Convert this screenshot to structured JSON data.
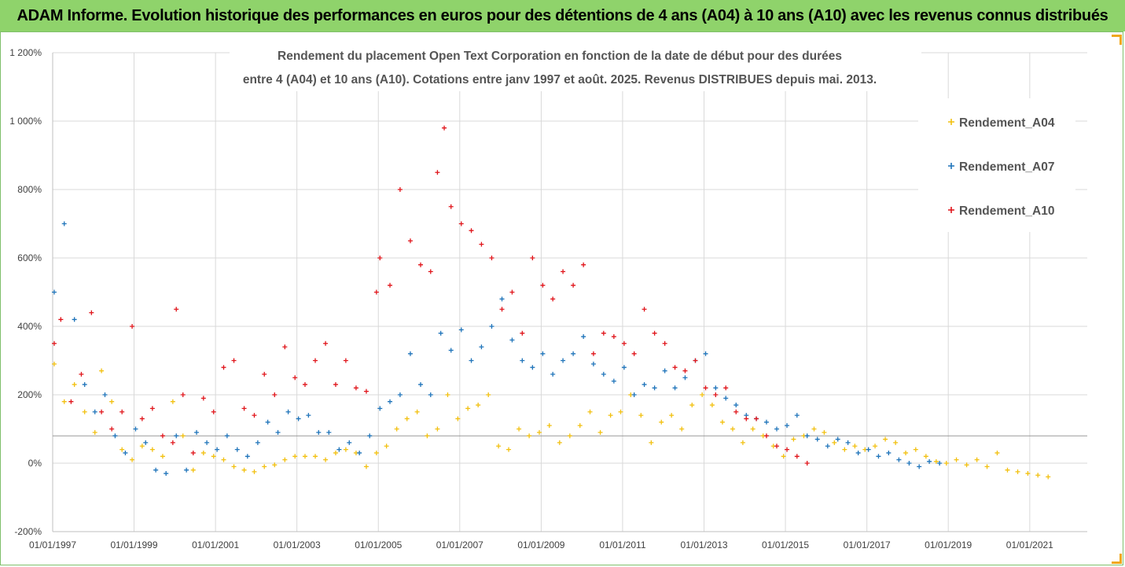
{
  "header": {
    "title": "ADAM Informe. Evolution historique des performances en euros pour des détentions de 4 ans (A04) à 10 ans (A10) avec les revenus connus distribués"
  },
  "chart_data": {
    "type": "scatter",
    "title_lines": [
      "Rendement du placement Open Text Corporation en fonction de la date de début pour des durées",
      "entre 4 (A04) et 10 ans (A10). Cotations entre janv 1997 et août. 2025. Revenus DISTRIBUES depuis mai. 2013."
    ],
    "x_ticks": [
      "01/01/1997",
      "01/01/1999",
      "01/01/2001",
      "01/01/2003",
      "01/01/2005",
      "01/01/2007",
      "01/01/2009",
      "01/01/2011",
      "01/01/2013",
      "01/01/2015",
      "01/01/2017",
      "01/01/2019",
      "01/01/2021"
    ],
    "xlim": [
      "1997-01-01",
      "2022-06-01"
    ],
    "y_ticks": [
      "1 200%",
      "1 000%",
      "800%",
      "600%",
      "400%",
      "200%",
      "0%",
      "-200%"
    ],
    "ylim": [
      -200,
      1200
    ],
    "reference_line": 80,
    "legend_position": "right",
    "series": [
      {
        "name": "Rendement_A04",
        "color": "#f2c00f",
        "points": [
          [
            "1997-01",
            290
          ],
          [
            "1997-04",
            180
          ],
          [
            "1997-07",
            230
          ],
          [
            "1997-10",
            150
          ],
          [
            "1998-01",
            90
          ],
          [
            "1998-03",
            270
          ],
          [
            "1998-06",
            180
          ],
          [
            "1998-09",
            40
          ],
          [
            "1998-12",
            10
          ],
          [
            "1999-03",
            50
          ],
          [
            "1999-06",
            40
          ],
          [
            "1999-09",
            20
          ],
          [
            "1999-12",
            180
          ],
          [
            "2000-03",
            80
          ],
          [
            "2000-06",
            -20
          ],
          [
            "2000-09",
            30
          ],
          [
            "2000-12",
            20
          ],
          [
            "2001-03",
            10
          ],
          [
            "2001-06",
            -10
          ],
          [
            "2001-09",
            -20
          ],
          [
            "2001-12",
            -25
          ],
          [
            "2002-03",
            -10
          ],
          [
            "2002-06",
            -5
          ],
          [
            "2002-09",
            10
          ],
          [
            "2002-12",
            20
          ],
          [
            "2003-03",
            20
          ],
          [
            "2003-06",
            20
          ],
          [
            "2003-09",
            10
          ],
          [
            "2003-12",
            30
          ],
          [
            "2004-03",
            40
          ],
          [
            "2004-06",
            30
          ],
          [
            "2004-09",
            -10
          ],
          [
            "2004-12",
            30
          ],
          [
            "2005-03",
            50
          ],
          [
            "2005-06",
            100
          ],
          [
            "2005-09",
            130
          ],
          [
            "2005-12",
            150
          ],
          [
            "2006-03",
            80
          ],
          [
            "2006-06",
            100
          ],
          [
            "2006-09",
            200
          ],
          [
            "2006-12",
            130
          ],
          [
            "2007-03",
            160
          ],
          [
            "2007-06",
            170
          ],
          [
            "2007-09",
            200
          ],
          [
            "2007-12",
            50
          ],
          [
            "2008-03",
            40
          ],
          [
            "2008-06",
            100
          ],
          [
            "2008-09",
            80
          ],
          [
            "2008-12",
            90
          ],
          [
            "2009-03",
            110
          ],
          [
            "2009-06",
            60
          ],
          [
            "2009-09",
            80
          ],
          [
            "2009-12",
            110
          ],
          [
            "2010-03",
            150
          ],
          [
            "2010-06",
            90
          ],
          [
            "2010-09",
            140
          ],
          [
            "2010-12",
            150
          ],
          [
            "2011-03",
            200
          ],
          [
            "2011-06",
            140
          ],
          [
            "2011-09",
            60
          ],
          [
            "2011-12",
            120
          ],
          [
            "2012-03",
            140
          ],
          [
            "2012-06",
            100
          ],
          [
            "2012-09",
            170
          ],
          [
            "2012-12",
            200
          ],
          [
            "2013-03",
            170
          ],
          [
            "2013-06",
            120
          ],
          [
            "2013-09",
            100
          ],
          [
            "2013-12",
            60
          ],
          [
            "2014-03",
            100
          ],
          [
            "2014-06",
            80
          ],
          [
            "2014-09",
            50
          ],
          [
            "2014-12",
            20
          ],
          [
            "2015-03",
            70
          ],
          [
            "2015-06",
            80
          ],
          [
            "2015-09",
            100
          ],
          [
            "2015-12",
            90
          ],
          [
            "2016-03",
            60
          ],
          [
            "2016-06",
            40
          ],
          [
            "2016-09",
            50
          ],
          [
            "2016-12",
            40
          ],
          [
            "2017-03",
            50
          ],
          [
            "2017-06",
            70
          ],
          [
            "2017-09",
            60
          ],
          [
            "2017-12",
            30
          ],
          [
            "2018-03",
            40
          ],
          [
            "2018-06",
            20
          ],
          [
            "2018-09",
            5
          ],
          [
            "2018-12",
            0
          ],
          [
            "2019-03",
            10
          ],
          [
            "2019-06",
            -5
          ],
          [
            "2019-09",
            10
          ],
          [
            "2019-12",
            -10
          ],
          [
            "2020-03",
            30
          ],
          [
            "2020-06",
            -20
          ],
          [
            "2020-09",
            -25
          ],
          [
            "2020-12",
            -30
          ],
          [
            "2021-03",
            -35
          ],
          [
            "2021-06",
            -40
          ]
        ]
      },
      {
        "name": "Rendement_A07",
        "color": "#1f74ba",
        "points": [
          [
            "1997-01",
            500
          ],
          [
            "1997-04",
            700
          ],
          [
            "1997-07",
            420
          ],
          [
            "1997-10",
            230
          ],
          [
            "1998-01",
            150
          ],
          [
            "1998-04",
            200
          ],
          [
            "1998-07",
            80
          ],
          [
            "1998-10",
            30
          ],
          [
            "1999-01",
            100
          ],
          [
            "1999-04",
            60
          ],
          [
            "1999-07",
            -20
          ],
          [
            "1999-10",
            -30
          ],
          [
            "2000-01",
            80
          ],
          [
            "2000-04",
            -20
          ],
          [
            "2000-07",
            90
          ],
          [
            "2000-10",
            60
          ],
          [
            "2001-01",
            40
          ],
          [
            "2001-04",
            80
          ],
          [
            "2001-07",
            40
          ],
          [
            "2001-10",
            20
          ],
          [
            "2002-01",
            60
          ],
          [
            "2002-04",
            120
          ],
          [
            "2002-07",
            90
          ],
          [
            "2002-10",
            150
          ],
          [
            "2003-01",
            130
          ],
          [
            "2003-04",
            140
          ],
          [
            "2003-07",
            90
          ],
          [
            "2003-10",
            90
          ],
          [
            "2004-01",
            40
          ],
          [
            "2004-04",
            60
          ],
          [
            "2004-07",
            30
          ],
          [
            "2004-10",
            80
          ],
          [
            "2005-01",
            160
          ],
          [
            "2005-04",
            180
          ],
          [
            "2005-07",
            200
          ],
          [
            "2005-10",
            320
          ],
          [
            "2006-01",
            230
          ],
          [
            "2006-04",
            200
          ],
          [
            "2006-07",
            380
          ],
          [
            "2006-10",
            330
          ],
          [
            "2007-01",
            390
          ],
          [
            "2007-04",
            300
          ],
          [
            "2007-07",
            340
          ],
          [
            "2007-10",
            400
          ],
          [
            "2008-01",
            480
          ],
          [
            "2008-04",
            360
          ],
          [
            "2008-07",
            300
          ],
          [
            "2008-10",
            280
          ],
          [
            "2009-01",
            320
          ],
          [
            "2009-04",
            260
          ],
          [
            "2009-07",
            300
          ],
          [
            "2009-10",
            320
          ],
          [
            "2010-01",
            370
          ],
          [
            "2010-04",
            290
          ],
          [
            "2010-07",
            260
          ],
          [
            "2010-10",
            240
          ],
          [
            "2011-01",
            280
          ],
          [
            "2011-04",
            200
          ],
          [
            "2011-07",
            230
          ],
          [
            "2011-10",
            220
          ],
          [
            "2012-01",
            270
          ],
          [
            "2012-04",
            220
          ],
          [
            "2012-07",
            250
          ],
          [
            "2012-10",
            300
          ],
          [
            "2013-01",
            320
          ],
          [
            "2013-04",
            220
          ],
          [
            "2013-07",
            190
          ],
          [
            "2013-10",
            170
          ],
          [
            "2014-01",
            140
          ],
          [
            "2014-04",
            130
          ],
          [
            "2014-07",
            120
          ],
          [
            "2014-10",
            100
          ],
          [
            "2015-01",
            110
          ],
          [
            "2015-04",
            140
          ],
          [
            "2015-07",
            80
          ],
          [
            "2015-10",
            70
          ],
          [
            "2016-01",
            50
          ],
          [
            "2016-04",
            70
          ],
          [
            "2016-07",
            60
          ],
          [
            "2016-10",
            30
          ],
          [
            "2017-01",
            40
          ],
          [
            "2017-04",
            20
          ],
          [
            "2017-07",
            30
          ],
          [
            "2017-10",
            10
          ],
          [
            "2018-01",
            0
          ],
          [
            "2018-04",
            -10
          ],
          [
            "2018-07",
            5
          ],
          [
            "2018-10",
            0
          ]
        ]
      },
      {
        "name": "Rendement_A10",
        "color": "#e0141a",
        "points": [
          [
            "1997-01",
            350
          ],
          [
            "1997-03",
            420
          ],
          [
            "1997-06",
            180
          ],
          [
            "1997-09",
            260
          ],
          [
            "1997-12",
            440
          ],
          [
            "1998-03",
            150
          ],
          [
            "1998-06",
            100
          ],
          [
            "1998-09",
            150
          ],
          [
            "1998-12",
            400
          ],
          [
            "1999-03",
            130
          ],
          [
            "1999-06",
            160
          ],
          [
            "1999-09",
            80
          ],
          [
            "1999-12",
            60
          ],
          [
            "2000-01",
            450
          ],
          [
            "2000-03",
            200
          ],
          [
            "2000-06",
            30
          ],
          [
            "2000-09",
            190
          ],
          [
            "2000-12",
            150
          ],
          [
            "2001-03",
            280
          ],
          [
            "2001-06",
            300
          ],
          [
            "2001-09",
            160
          ],
          [
            "2001-12",
            140
          ],
          [
            "2002-03",
            260
          ],
          [
            "2002-06",
            200
          ],
          [
            "2002-09",
            340
          ],
          [
            "2002-12",
            250
          ],
          [
            "2003-03",
            230
          ],
          [
            "2003-06",
            300
          ],
          [
            "2003-09",
            350
          ],
          [
            "2003-12",
            230
          ],
          [
            "2004-03",
            300
          ],
          [
            "2004-06",
            220
          ],
          [
            "2004-09",
            210
          ],
          [
            "2004-12",
            500
          ],
          [
            "2005-01",
            600
          ],
          [
            "2005-04",
            520
          ],
          [
            "2005-07",
            800
          ],
          [
            "2005-10",
            650
          ],
          [
            "2006-01",
            580
          ],
          [
            "2006-04",
            560
          ],
          [
            "2006-06",
            850
          ],
          [
            "2006-08",
            980
          ],
          [
            "2006-10",
            750
          ],
          [
            "2007-01",
            700
          ],
          [
            "2007-04",
            680
          ],
          [
            "2007-07",
            640
          ],
          [
            "2007-10",
            600
          ],
          [
            "2008-01",
            450
          ],
          [
            "2008-04",
            500
          ],
          [
            "2008-07",
            380
          ],
          [
            "2008-10",
            600
          ],
          [
            "2009-01",
            520
          ],
          [
            "2009-04",
            480
          ],
          [
            "2009-07",
            560
          ],
          [
            "2009-10",
            520
          ],
          [
            "2010-01",
            580
          ],
          [
            "2010-04",
            320
          ],
          [
            "2010-07",
            380
          ],
          [
            "2010-10",
            370
          ],
          [
            "2011-01",
            350
          ],
          [
            "2011-04",
            320
          ],
          [
            "2011-07",
            450
          ],
          [
            "2011-10",
            380
          ],
          [
            "2012-01",
            350
          ],
          [
            "2012-04",
            280
          ],
          [
            "2012-07",
            270
          ],
          [
            "2012-10",
            300
          ],
          [
            "2013-01",
            220
          ],
          [
            "2013-04",
            200
          ],
          [
            "2013-07",
            220
          ],
          [
            "2013-10",
            150
          ],
          [
            "2014-01",
            130
          ],
          [
            "2014-04",
            130
          ],
          [
            "2014-07",
            80
          ],
          [
            "2014-10",
            50
          ],
          [
            "2015-01",
            40
          ],
          [
            "2015-04",
            20
          ],
          [
            "2015-07",
            0
          ]
        ]
      }
    ]
  }
}
